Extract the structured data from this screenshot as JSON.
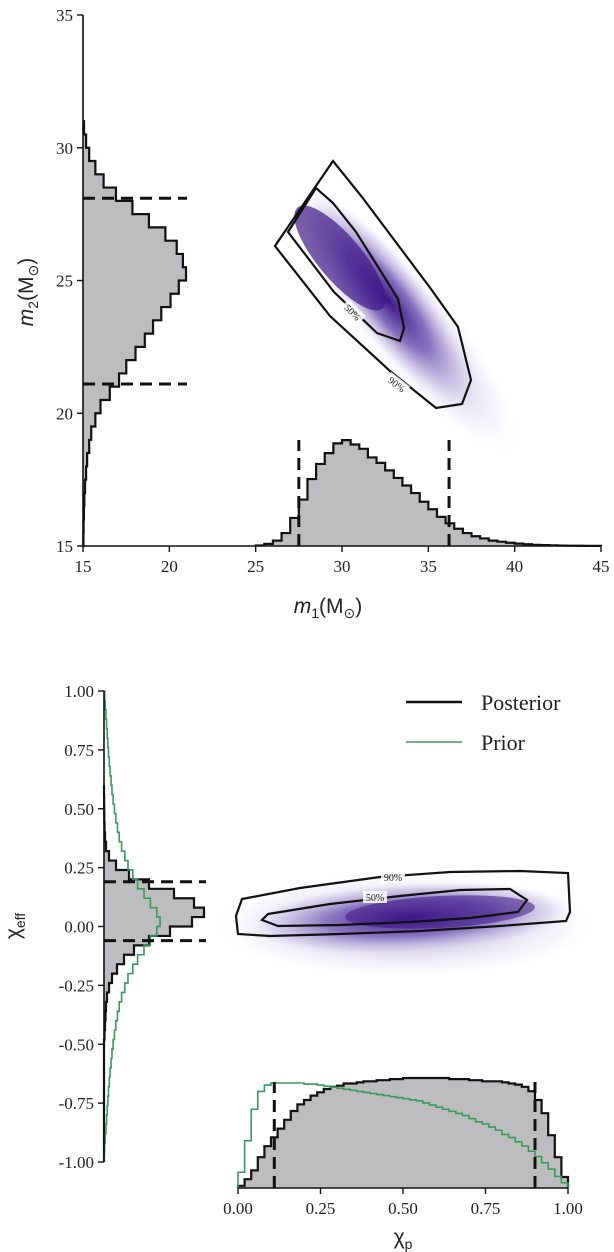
{
  "colors": {
    "posterior": "#111111",
    "prior": "#3a9a5b",
    "hist_fill": "#bdbdc0",
    "density": "#4a1f8f",
    "interval": "#111111"
  },
  "chart_data": [
    {
      "type": "corner",
      "id": "masses",
      "xlabel": "m1(M⊙)",
      "ylabel": "m2(M⊙)",
      "xlim": [
        15,
        45
      ],
      "ylim": [
        15,
        35
      ],
      "xticks": [
        "15",
        "20",
        "25",
        "30",
        "35",
        "40",
        "45"
      ],
      "yticks": [
        "15",
        "20",
        "25",
        "30",
        "35"
      ],
      "contour_labels": [
        "50%",
        "90%"
      ],
      "interval_x": [
        27.5,
        36.2
      ],
      "interval_y": [
        21.1,
        28.1
      ],
      "hist_x": {
        "edges": [
          25.0,
          25.5,
          26.0,
          26.5,
          27.0,
          27.5,
          28.0,
          28.5,
          29.0,
          29.5,
          30.0,
          30.5,
          31.0,
          31.5,
          32.0,
          32.5,
          33.0,
          33.5,
          34.0,
          34.5,
          35.0,
          35.5,
          36.0,
          36.5,
          37.0,
          37.5,
          38.0,
          38.5,
          39.0,
          39.5,
          40.0,
          40.5,
          41.0,
          41.5,
          42.0,
          42.5,
          43.0,
          43.5,
          44.0,
          44.5,
          45.0
        ],
        "density": [
          0.005,
          0.02,
          0.05,
          0.12,
          0.26,
          0.43,
          0.62,
          0.76,
          0.86,
          0.95,
          0.98,
          0.94,
          0.9,
          0.82,
          0.77,
          0.7,
          0.63,
          0.56,
          0.49,
          0.41,
          0.34,
          0.27,
          0.21,
          0.16,
          0.12,
          0.09,
          0.07,
          0.05,
          0.04,
          0.03,
          0.022,
          0.016,
          0.011,
          0.008,
          0.006,
          0.004,
          0.003,
          0.002,
          0.001,
          0.001
        ]
      },
      "hist_y": {
        "edges": [
          15,
          15.5,
          16,
          16.5,
          17,
          17.5,
          18,
          18.5,
          19,
          19.5,
          20,
          20.5,
          21,
          21.5,
          22,
          22.5,
          23,
          23.5,
          24,
          24.5,
          25,
          25.5,
          26,
          26.5,
          27,
          27.5,
          28,
          28.5,
          29,
          29.5,
          30,
          30.5,
          31
        ],
        "density": [
          0.004,
          0.006,
          0.009,
          0.013,
          0.02,
          0.03,
          0.04,
          0.06,
          0.08,
          0.12,
          0.17,
          0.26,
          0.35,
          0.42,
          0.51,
          0.6,
          0.68,
          0.76,
          0.85,
          0.93,
          1.0,
          0.97,
          0.91,
          0.8,
          0.64,
          0.48,
          0.32,
          0.2,
          0.12,
          0.06,
          0.03,
          0.01
        ]
      }
    },
    {
      "type": "corner",
      "id": "spins",
      "xlabel": "χp",
      "ylabel": "χeff",
      "xlim": [
        0.0,
        1.0
      ],
      "ylim": [
        -1.0,
        1.0
      ],
      "xticks": [
        "0.00",
        "0.25",
        "0.50",
        "0.75",
        "1.00"
      ],
      "yticks": [
        "-1.00",
        "-0.75",
        "-0.50",
        "-0.25",
        "0.00",
        "0.25",
        "0.50",
        "0.75",
        "1.00"
      ],
      "contour_labels": [
        "50%",
        "90%"
      ],
      "interval_x": [
        0.11,
        0.9
      ],
      "interval_y": [
        -0.06,
        0.19
      ],
      "legend": {
        "position": "top-right",
        "entries": [
          "Posterior",
          "Prior"
        ]
      },
      "hist_x_posterior": {
        "edges": [
          0.0,
          0.02,
          0.04,
          0.06,
          0.08,
          0.1,
          0.12,
          0.14,
          0.16,
          0.18,
          0.2,
          0.22,
          0.24,
          0.26,
          0.28,
          0.3,
          0.32,
          0.34,
          0.36,
          0.38,
          0.4,
          0.42,
          0.44,
          0.46,
          0.48,
          0.5,
          0.52,
          0.54,
          0.56,
          0.58,
          0.6,
          0.62,
          0.64,
          0.66,
          0.68,
          0.7,
          0.72,
          0.74,
          0.76,
          0.78,
          0.8,
          0.82,
          0.84,
          0.86,
          0.88,
          0.9,
          0.92,
          0.94,
          0.96,
          0.98,
          1.0
        ],
        "density": [
          0.02,
          0.08,
          0.16,
          0.28,
          0.38,
          0.46,
          0.54,
          0.62,
          0.7,
          0.76,
          0.8,
          0.84,
          0.87,
          0.9,
          0.92,
          0.93,
          0.95,
          0.95,
          0.96,
          0.97,
          0.97,
          0.98,
          0.98,
          0.99,
          0.99,
          1.0,
          1.0,
          1.0,
          1.0,
          1.0,
          1.0,
          1.0,
          0.99,
          0.99,
          0.99,
          0.98,
          0.98,
          0.97,
          0.97,
          0.97,
          0.96,
          0.95,
          0.94,
          0.92,
          0.88,
          0.8,
          0.68,
          0.48,
          0.28,
          0.1
        ]
      },
      "hist_x_prior": {
        "edges": [
          0.0,
          0.02,
          0.04,
          0.06,
          0.08,
          0.1,
          0.12,
          0.14,
          0.16,
          0.18,
          0.2,
          0.22,
          0.24,
          0.26,
          0.28,
          0.3,
          0.32,
          0.34,
          0.36,
          0.38,
          0.4,
          0.42,
          0.44,
          0.46,
          0.48,
          0.5,
          0.52,
          0.54,
          0.56,
          0.58,
          0.6,
          0.62,
          0.64,
          0.66,
          0.68,
          0.7,
          0.72,
          0.74,
          0.76,
          0.78,
          0.8,
          0.82,
          0.84,
          0.86,
          0.88,
          0.9,
          0.92,
          0.94,
          0.96,
          0.98,
          1.0
        ],
        "density": [
          0.15,
          0.45,
          0.75,
          0.92,
          0.98,
          1.0,
          1.0,
          1.0,
          1.0,
          1.0,
          0.99,
          0.99,
          0.98,
          0.97,
          0.96,
          0.95,
          0.94,
          0.93,
          0.92,
          0.91,
          0.9,
          0.89,
          0.88,
          0.87,
          0.86,
          0.85,
          0.84,
          0.83,
          0.81,
          0.79,
          0.77,
          0.75,
          0.73,
          0.71,
          0.69,
          0.66,
          0.63,
          0.61,
          0.58,
          0.55,
          0.51,
          0.48,
          0.44,
          0.4,
          0.35,
          0.3,
          0.24,
          0.18,
          0.11,
          0.05
        ]
      },
      "hist_y_posterior": {
        "edges": [
          -1.0,
          -0.96,
          -0.92,
          -0.88,
          -0.84,
          -0.8,
          -0.76,
          -0.72,
          -0.68,
          -0.64,
          -0.6,
          -0.56,
          -0.52,
          -0.48,
          -0.44,
          -0.4,
          -0.36,
          -0.32,
          -0.28,
          -0.24,
          -0.2,
          -0.16,
          -0.12,
          -0.08,
          -0.04,
          0.0,
          0.04,
          0.08,
          0.12,
          0.16,
          0.2,
          0.24,
          0.28,
          0.32,
          0.36,
          0.4,
          0.44,
          0.48,
          0.52,
          0.56,
          0.6
        ],
        "density": [
          0.0,
          0.0,
          0.0,
          0.0,
          0.0,
          0.0,
          0.0,
          0.0,
          0.0,
          0.0,
          0.0,
          0.0,
          0.0,
          0.005,
          0.01,
          0.015,
          0.02,
          0.03,
          0.05,
          0.08,
          0.13,
          0.2,
          0.3,
          0.45,
          0.66,
          0.88,
          1.0,
          0.9,
          0.7,
          0.45,
          0.25,
          0.12,
          0.05,
          0.02,
          0.01,
          0.005,
          0.003,
          0.002,
          0.001,
          0.0
        ]
      },
      "hist_y_prior": {
        "edges": [
          -1.0,
          -0.96,
          -0.92,
          -0.88,
          -0.84,
          -0.8,
          -0.76,
          -0.72,
          -0.68,
          -0.64,
          -0.6,
          -0.56,
          -0.52,
          -0.48,
          -0.44,
          -0.4,
          -0.36,
          -0.32,
          -0.28,
          -0.24,
          -0.2,
          -0.16,
          -0.12,
          -0.08,
          -0.04,
          0.0,
          0.04,
          0.08,
          0.12,
          0.16,
          0.2,
          0.24,
          0.28,
          0.32,
          0.36,
          0.4,
          0.44,
          0.48,
          0.52,
          0.56,
          0.6,
          0.64,
          0.68,
          0.72,
          0.76,
          0.8,
          0.84,
          0.88,
          0.92,
          0.96,
          1.0
        ],
        "density": [
          0.0,
          0.004,
          0.008,
          0.012,
          0.016,
          0.02,
          0.024,
          0.028,
          0.033,
          0.038,
          0.044,
          0.05,
          0.057,
          0.065,
          0.074,
          0.084,
          0.095,
          0.11,
          0.13,
          0.15,
          0.18,
          0.21,
          0.25,
          0.29,
          0.33,
          0.35,
          0.33,
          0.29,
          0.25,
          0.21,
          0.18,
          0.15,
          0.13,
          0.11,
          0.095,
          0.084,
          0.074,
          0.065,
          0.057,
          0.05,
          0.044,
          0.038,
          0.033,
          0.028,
          0.024,
          0.02,
          0.016,
          0.012,
          0.008,
          0.004
        ]
      }
    }
  ]
}
